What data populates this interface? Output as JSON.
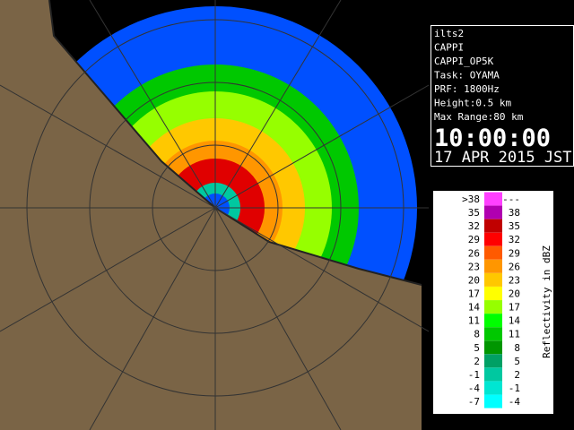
{
  "info": {
    "lines": [
      "ilts2",
      "CAPPI",
      "CAPPI_OP5K",
      "Task: OYAMA",
      "PRF: 1800Hz",
      "Height:0.5 km",
      "Max Range:80 km"
    ],
    "time": "10:00:00",
    "date": "17 APR 2015 JST"
  },
  "legend": {
    "title": "Reflectivity in dBZ",
    "rows": [
      {
        "low": ">38",
        "high": "---",
        "color": "#ff40ff"
      },
      {
        "low": "35",
        "high": "38",
        "color": "#b000b0"
      },
      {
        "low": "32",
        "high": "35",
        "color": "#c00000"
      },
      {
        "low": "29",
        "high": "32",
        "color": "#ff0000"
      },
      {
        "low": "26",
        "high": "29",
        "color": "#ff5a00"
      },
      {
        "low": "23",
        "high": "26",
        "color": "#ff9600"
      },
      {
        "low": "20",
        "high": "23",
        "color": "#ffc800"
      },
      {
        "low": "17",
        "high": "20",
        "color": "#ffff00"
      },
      {
        "low": "14",
        "high": "17",
        "color": "#96ff00"
      },
      {
        "low": "11",
        "high": "14",
        "color": "#00ff00"
      },
      {
        "low": "8",
        "high": "11",
        "color": "#00c800"
      },
      {
        "low": "5",
        "high": "8",
        "color": "#009600"
      },
      {
        "low": "2",
        "high": "5",
        "color": "#00a064"
      },
      {
        "low": "-1",
        "high": "2",
        "color": "#00c8a0"
      },
      {
        "low": "-4",
        "high": "-1",
        "color": "#00e6d2"
      },
      {
        "low": "-7",
        "high": "-4",
        "color": "#00ffff"
      }
    ]
  }
}
